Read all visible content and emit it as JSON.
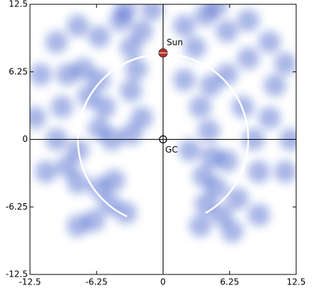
{
  "chart_data": {
    "type": "density",
    "color": "#1f3fbf",
    "xlim": [
      -12.5,
      12.5
    ],
    "ylim": [
      -12.5,
      12.5
    ],
    "xticks": [
      -12.5,
      -6.25,
      0,
      6.25,
      12.5
    ],
    "yticks": [
      -12.5,
      -6.25,
      0,
      6.25,
      12.5
    ],
    "x": [
      -4.6,
      -4.8,
      -6,
      -5.5,
      -7,
      -6,
      -3,
      -2,
      -8,
      -9,
      -10,
      -8,
      -6,
      -5,
      -3.5,
      -9.5,
      -7.5,
      -3,
      -2.5,
      -9,
      4.3,
      4.6,
      3.8,
      5,
      6,
      3.5,
      4.5,
      6,
      7.5,
      8.5,
      9,
      7,
      5.5,
      4,
      10,
      2.5,
      2,
      8,
      10.5,
      -10,
      -8,
      -6,
      -4,
      -2,
      -1,
      2,
      4,
      6,
      8,
      10,
      11.5,
      -11.5,
      -12,
      12,
      11.5,
      -11,
      -3,
      3,
      3.5,
      -6.5,
      -8,
      6.5,
      9,
      -3.5,
      5
    ],
    "y": [
      -3.8,
      0,
      1,
      3,
      4,
      5.5,
      4.5,
      2,
      -1,
      -2.5,
      0,
      -4,
      -4.5,
      -6,
      -6.8,
      3,
      6.5,
      0.5,
      6.5,
      6,
      0.8,
      -1.6,
      -3.4,
      -4.5,
      -2,
      3,
      5,
      6,
      3,
      0,
      -3,
      -5.5,
      -7,
      -6,
      2,
      -1,
      5.5,
      7.5,
      5,
      9,
      10.5,
      9.5,
      11,
      10,
      12,
      10.5,
      11.5,
      10,
      11,
      9,
      7,
      6,
      2,
      0,
      -3,
      -3,
      8.5,
      8.5,
      -8,
      -7.5,
      -8,
      -8.5,
      -7,
      12,
      12.3
    ],
    "annotations": [
      {
        "text": "Sun",
        "x": 0,
        "y": 8
      },
      {
        "text": "GC",
        "x": 0,
        "y": 0
      }
    ],
    "circle_radius": 8,
    "circle_gap": [
      -115,
      -60
    ]
  }
}
